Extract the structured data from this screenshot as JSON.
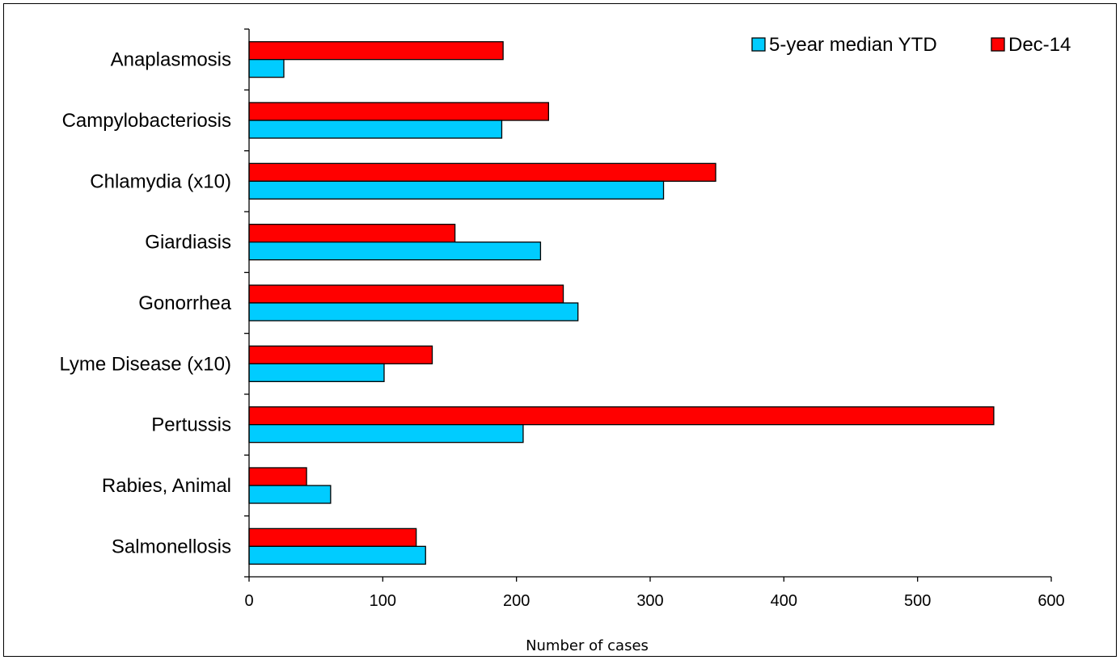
{
  "chart_data": {
    "type": "bar",
    "orientation": "horizontal",
    "categories": [
      "Anaplasmosis",
      "Campylobacteriosis",
      "Chlamydia (x10)",
      "Giardiasis",
      "Gonorrhea",
      "Lyme Disease (x10)",
      "Pertussis",
      "Rabies, Animal",
      "Salmonellosis"
    ],
    "series": [
      {
        "name": "5-year median YTD",
        "color": "#00CCFF",
        "values": [
          26,
          189,
          310,
          218,
          246,
          101,
          205,
          61,
          132
        ]
      },
      {
        "name": "Dec-14",
        "color": "#FF0000",
        "values": [
          190,
          224,
          349,
          154,
          235,
          137,
          557,
          43,
          125
        ]
      }
    ],
    "xlabel": "Number of cases",
    "ylabel": "",
    "xlim": [
      0,
      600
    ],
    "xticks": [
      0,
      100,
      200,
      300,
      400,
      500,
      600
    ],
    "grid": false,
    "legend": "top-right"
  }
}
